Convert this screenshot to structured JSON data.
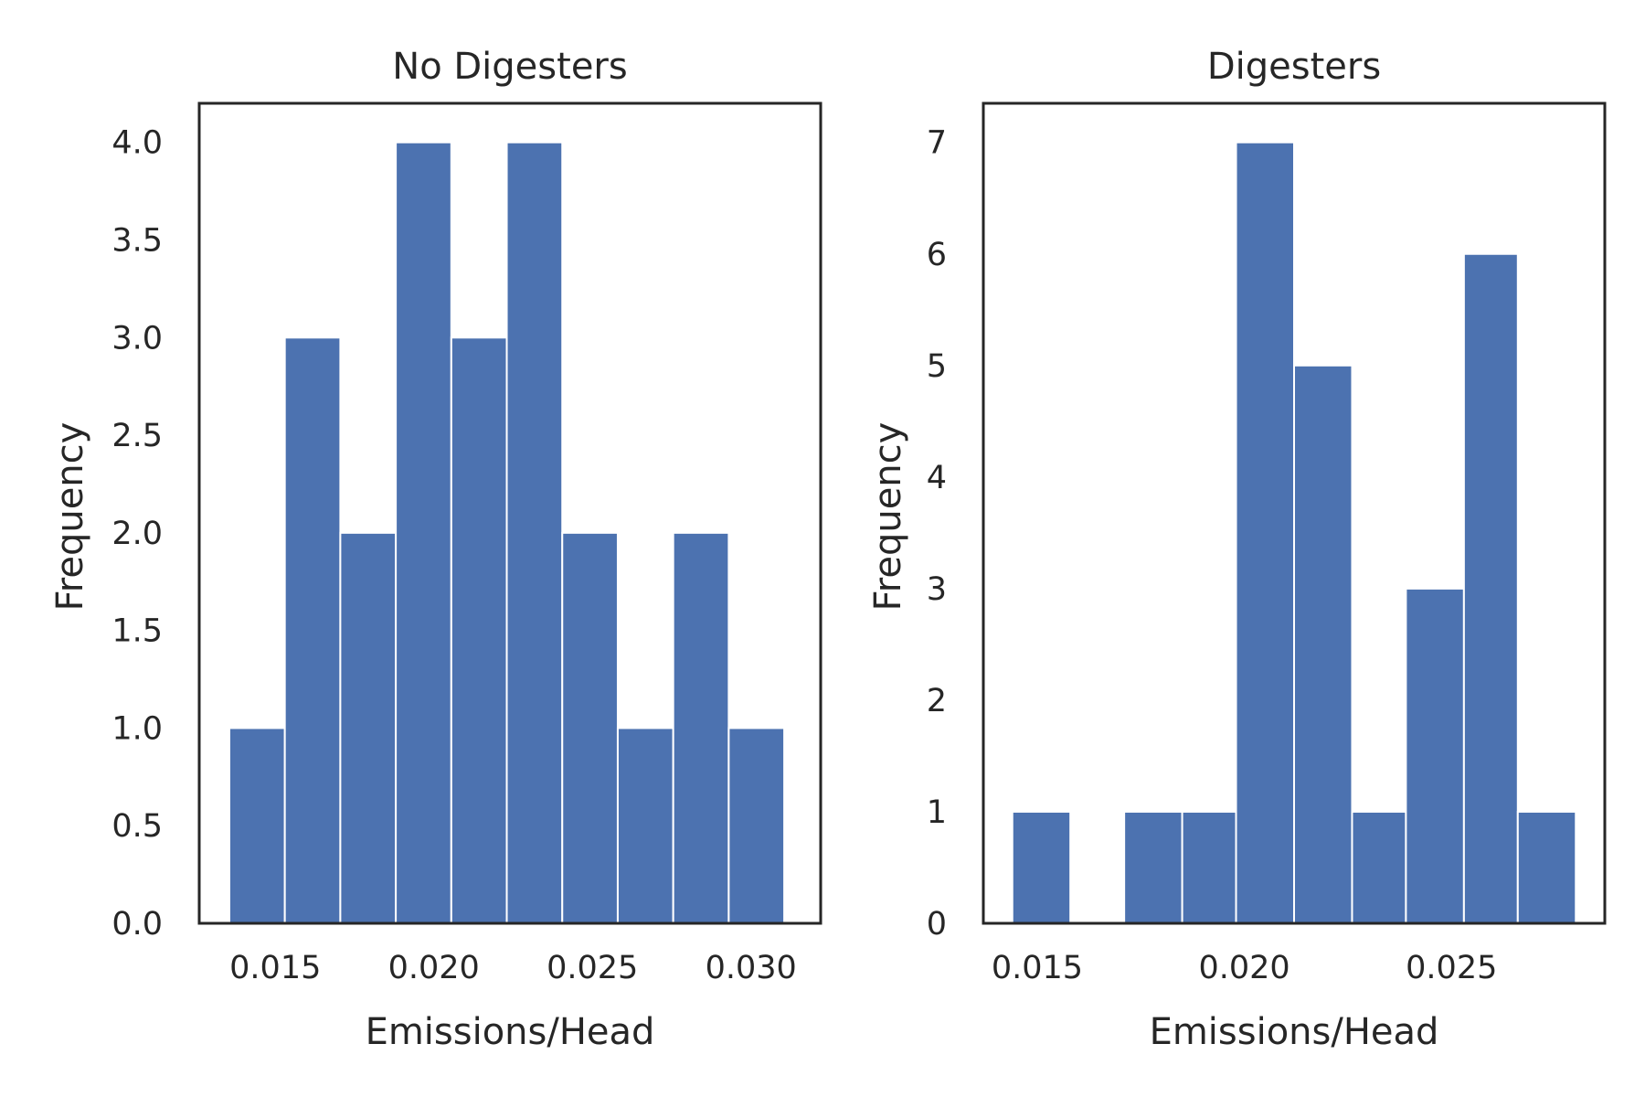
{
  "colors": {
    "bar": "#4c72b0",
    "axis": "#262626"
  },
  "chart_data": [
    {
      "type": "bar",
      "title": "No Digesters",
      "xlabel": "Emissions/Head",
      "ylabel": "Frequency",
      "bin_edges": [
        0.01355,
        0.0153,
        0.01705,
        0.0188,
        0.02055,
        0.0223,
        0.02405,
        0.0258,
        0.02755,
        0.0293,
        0.03105
      ],
      "values": [
        1,
        3,
        2,
        4,
        3,
        4,
        2,
        1,
        2,
        1
      ],
      "xlim": [
        0.0126,
        0.0322
      ],
      "ylim": [
        0,
        4.2
      ],
      "xticks": [
        0.015,
        0.02,
        0.025,
        0.03
      ],
      "xtick_labels": [
        "0.015",
        "0.020",
        "0.025",
        "0.030"
      ],
      "yticks": [
        0,
        0.5,
        1,
        1.5,
        2,
        2.5,
        3,
        3.5,
        4
      ],
      "ytick_labels": [
        "0.0",
        "0.5",
        "1.0",
        "1.5",
        "2.0",
        "2.5",
        "3.0",
        "3.5",
        "4.0"
      ],
      "grid": false,
      "legend": "none"
    },
    {
      "type": "bar",
      "title": "Digesters",
      "xlabel": "Emissions/Head",
      "ylabel": "Frequency",
      "bin_edges": [
        0.0144,
        0.0158,
        0.0171,
        0.0185,
        0.0198,
        0.0212,
        0.0226,
        0.0239,
        0.0253,
        0.0266,
        0.028
      ],
      "values": [
        1,
        0,
        1,
        1,
        7,
        5,
        1,
        3,
        6,
        1
      ],
      "xlim": [
        0.0137,
        0.0287
      ],
      "ylim": [
        0,
        7.35
      ],
      "xticks": [
        0.015,
        0.02,
        0.025
      ],
      "xtick_labels": [
        "0.015",
        "0.020",
        "0.025"
      ],
      "yticks": [
        0,
        1,
        2,
        3,
        4,
        5,
        6,
        7
      ],
      "ytick_labels": [
        "0",
        "1",
        "2",
        "3",
        "4",
        "5",
        "6",
        "7"
      ],
      "grid": false,
      "legend": "none"
    }
  ]
}
